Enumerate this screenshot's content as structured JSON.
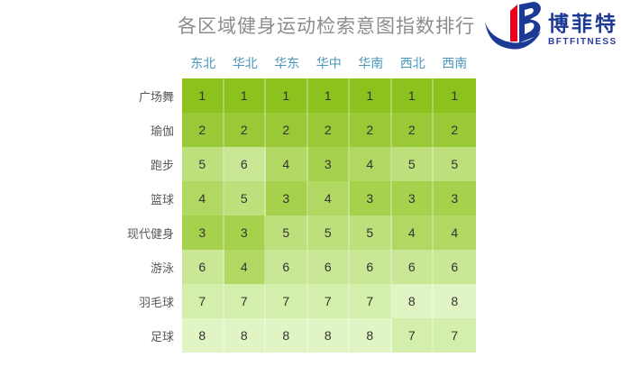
{
  "title": "各区域健身运动检索意图指数排行",
  "logo": {
    "brand_cn": "博菲特",
    "brand_en": "BFTFITNESS"
  },
  "chart_data": {
    "type": "heatmap",
    "title": "各区域健身运动检索意图指数排行",
    "columns": [
      "东北",
      "华北",
      "华东",
      "华中",
      "华南",
      "西北",
      "西南"
    ],
    "rows": [
      "广场舞",
      "瑜伽",
      "跑步",
      "篮球",
      "现代健身",
      "游泳",
      "羽毛球",
      "足球"
    ],
    "values": [
      [
        1,
        1,
        1,
        1,
        1,
        1,
        1
      ],
      [
        2,
        2,
        2,
        2,
        2,
        2,
        2
      ],
      [
        5,
        6,
        4,
        3,
        4,
        5,
        5
      ],
      [
        4,
        5,
        3,
        4,
        3,
        3,
        3
      ],
      [
        3,
        3,
        5,
        5,
        5,
        4,
        4
      ],
      [
        6,
        4,
        6,
        6,
        6,
        6,
        6
      ],
      [
        7,
        7,
        7,
        7,
        7,
        8,
        8
      ],
      [
        8,
        8,
        8,
        8,
        8,
        7,
        7
      ]
    ],
    "value_range": [
      1,
      8
    ],
    "legend": "lower rank = darker green",
    "palette": {
      "1": "#8CC21D",
      "2": "#99C936",
      "3": "#A5D14C",
      "4": "#B1D863",
      "5": "#BEE07C",
      "6": "#C9E794",
      "7": "#D4EEAB",
      "8": "#E0F5C3"
    }
  },
  "colors": {
    "title_gray": "#8C8C8C",
    "column_header_blue": "#4C96BE",
    "row_label_gray": "#595959",
    "cell_text": "#333333",
    "logo_blue": "#1C3994",
    "logo_red": "#E8001E"
  }
}
